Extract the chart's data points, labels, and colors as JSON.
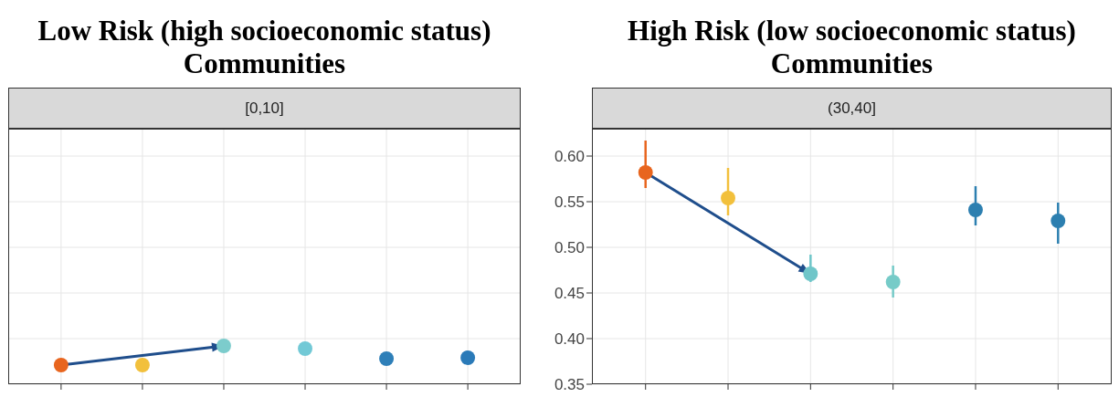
{
  "chart_data": [
    {
      "type": "scatter",
      "title": "Low Risk (high socioeconomic status) Communities",
      "subtitle": "[0,10]",
      "categories": [
        null,
        null,
        null,
        null,
        null,
        null
      ],
      "values": [
        0.371,
        0.371,
        0.392,
        0.389,
        0.378,
        0.379
      ],
      "colors": [
        "#e8651e",
        "#f2c03c",
        "#7ccccc",
        "#72c9d6",
        "#2e7fb8",
        "#2a7ab8"
      ],
      "ylim": [
        0.35,
        0.63
      ],
      "yticks": [
        {
          "value": 0.35,
          "label": null
        },
        {
          "value": 0.4,
          "label": null
        },
        {
          "value": 0.45,
          "label": null
        },
        {
          "value": 0.5,
          "label": null
        },
        {
          "value": 0.55,
          "label": null
        },
        {
          "value": 0.6,
          "label": null
        }
      ],
      "grid": true,
      "marker": "circle",
      "tick_labels": false
    },
    {
      "type": "scatter",
      "title": "High Risk (low socioeconomic status) Communities",
      "subtitle": "(30,40]",
      "categories": [
        null,
        null,
        null,
        null,
        null,
        null
      ],
      "values": [
        0.582,
        0.554,
        0.471,
        0.462,
        0.541,
        0.529
      ],
      "errors": [
        [
          0.565,
          0.617
        ],
        [
          0.535,
          0.587
        ],
        [
          0.462,
          0.492
        ],
        [
          0.445,
          0.48
        ],
        [
          0.524,
          0.567
        ],
        [
          0.504,
          0.549
        ]
      ],
      "colors": [
        "#e8651e",
        "#f2c03c",
        "#6fc6c9",
        "#76cbc8",
        "#2c7fb0",
        "#2c7fb0"
      ],
      "ylim": [
        0.35,
        0.63
      ],
      "yticks": [
        {
          "value": 0.35,
          "label": "0.35"
        },
        {
          "value": 0.4,
          "label": "0.40"
        },
        {
          "value": 0.45,
          "label": "0.45"
        },
        {
          "value": 0.5,
          "label": "0.50"
        },
        {
          "value": 0.55,
          "label": "0.55"
        },
        {
          "value": 0.6,
          "label": "0.60"
        }
      ],
      "grid": true,
      "marker": "circle",
      "tick_labels": "y"
    }
  ]
}
